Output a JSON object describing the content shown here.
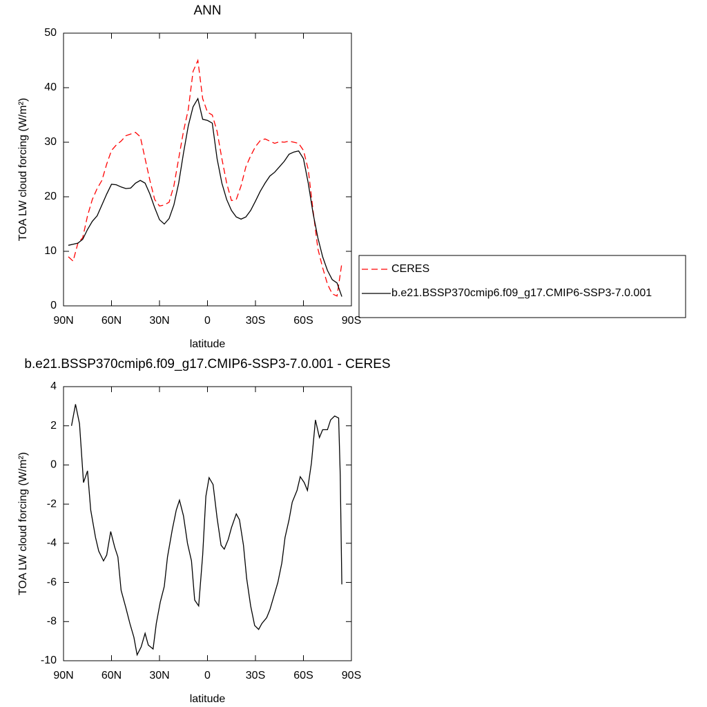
{
  "chart_data": [
    {
      "type": "line",
      "title": "ANN",
      "x_label": "latitude",
      "y_label": "TOA LW cloud forcing (W/m²)",
      "x": [
        87,
        84,
        81,
        78,
        75,
        72,
        69,
        66,
        63,
        60,
        57,
        54,
        51,
        48,
        45,
        42,
        39,
        36,
        33,
        30,
        27,
        24,
        21,
        18,
        15,
        12,
        9,
        6,
        3,
        0,
        -3,
        -6,
        -9,
        -12,
        -15,
        -18,
        -21,
        -24,
        -27,
        -30,
        -33,
        -36,
        -39,
        -42,
        -45,
        -48,
        -51,
        -54,
        -57,
        -60,
        -63,
        -66,
        -69,
        -72,
        -75,
        -78,
        -81,
        -84
      ],
      "series": [
        {
          "name": "CERES",
          "color": "#ff0000",
          "line_style": "dashed",
          "values": [
            9,
            8.2,
            11.5,
            12.5,
            16.5,
            19.5,
            21.5,
            23,
            26,
            28.5,
            29.5,
            30.2,
            31.2,
            31.5,
            31.8,
            31,
            27,
            23,
            19.5,
            18.3,
            18.5,
            19,
            22,
            27,
            32,
            36,
            43,
            45,
            38,
            35.5,
            35,
            32,
            27,
            22.5,
            19.3,
            19.5,
            22,
            25.5,
            27.5,
            29.2,
            30.3,
            30.6,
            30.2,
            29.8,
            30.1,
            30,
            30.2,
            30,
            29.8,
            28.5,
            25,
            17.5,
            10.5,
            7,
            4,
            2.2,
            1.8,
            7.8
          ]
        },
        {
          "name": "b.e21.BSSP370cmip6.f09_g17.CMIP6-SSP3-7.0.001",
          "color": "#000000",
          "line_style": "solid",
          "values": [
            11.1,
            11.3,
            11.5,
            12.2,
            14,
            15.5,
            16.5,
            18.5,
            20.5,
            22.3,
            22.2,
            21.8,
            21.5,
            21.6,
            22.5,
            23,
            22.5,
            20.5,
            18,
            15.8,
            15,
            16,
            18.5,
            22.5,
            28,
            33,
            36.5,
            38,
            34.2,
            34,
            33.5,
            27,
            22.5,
            19.5,
            17.5,
            16.3,
            15.9,
            16.3,
            17.5,
            19.2,
            21,
            22.5,
            23.8,
            24.5,
            25.5,
            26.5,
            27.8,
            28.2,
            28.4,
            27,
            22.5,
            17,
            12.5,
            9,
            6.5,
            4.8,
            4.2,
            1.7
          ]
        }
      ],
      "xlim": [
        90,
        -90
      ],
      "xticks": [
        {
          "value": 90,
          "label": "90N"
        },
        {
          "value": 60,
          "label": "60N"
        },
        {
          "value": 30,
          "label": "30N"
        },
        0,
        {
          "value": -30,
          "label": "30S"
        },
        {
          "value": -60,
          "label": "60S"
        },
        {
          "value": -90,
          "label": "90S"
        }
      ],
      "ylim": [
        0,
        50
      ],
      "yticks": [
        0,
        10,
        20,
        30,
        40,
        50
      ],
      "legend": "right"
    },
    {
      "type": "line",
      "title": "b.e21.BSSP370cmip6.f09_g17.CMIP6-SSP3-7.0.001 - CERES",
      "x_label": "latitude",
      "y_label": "TOA LW cloud forcing (W/m²)",
      "x": [
        85,
        82.5,
        80,
        77.5,
        75,
        73,
        70,
        68,
        65,
        63,
        60.5,
        58,
        56,
        54,
        51,
        48.5,
        46,
        44,
        41.5,
        39,
        37,
        34,
        32,
        29.5,
        27,
        25,
        22,
        19.5,
        17.5,
        15,
        12.5,
        10,
        8,
        5.5,
        3,
        1,
        -1,
        -3.5,
        -6,
        -8.5,
        -10.5,
        -13,
        -15,
        -18,
        -20,
        -22.5,
        -24.5,
        -27,
        -29.5,
        -32,
        -34,
        -37,
        -39,
        -41.5,
        -44,
        -46.5,
        -48.5,
        -51,
        -53,
        -56,
        -58,
        -60.5,
        -62.5,
        -65,
        -67.5,
        -70,
        -72,
        -75,
        -77,
        -79.5,
        -82,
        -83,
        -84
      ],
      "series": [
        {
          "color": "#000000",
          "line_style": "solid",
          "values": [
            2.0,
            3.1,
            2.1,
            -0.9,
            -0.3,
            -2.3,
            -3.7,
            -4.4,
            -4.9,
            -4.6,
            -3.4,
            -4.2,
            -4.7,
            -6.4,
            -7.3,
            -8.1,
            -8.8,
            -9.7,
            -9.3,
            -8.6,
            -9.2,
            -9.4,
            -8.1,
            -7.0,
            -6.2,
            -4.7,
            -3.3,
            -2.3,
            -1.8,
            -2.6,
            -4.0,
            -4.9,
            -6.9,
            -7.2,
            -4.6,
            -1.6,
            -0.65,
            -1.0,
            -2.7,
            -4.1,
            -4.3,
            -3.8,
            -3.2,
            -2.5,
            -2.8,
            -4.1,
            -5.8,
            -7.2,
            -8.2,
            -8.4,
            -8.1,
            -7.8,
            -7.4,
            -6.7,
            -6.0,
            -5.0,
            -3.7,
            -2.8,
            -1.9,
            -1.3,
            -0.6,
            -0.9,
            -1.3,
            0.1,
            2.3,
            1.4,
            1.8,
            1.8,
            2.3,
            2.5,
            2.4,
            -0.5,
            -6.1
          ]
        }
      ],
      "xlim": [
        90,
        -90
      ],
      "xticks": [
        {
          "value": 90,
          "label": "90N"
        },
        {
          "value": 60,
          "label": "60N"
        },
        {
          "value": 30,
          "label": "30N"
        },
        0,
        {
          "value": -30,
          "label": "30S"
        },
        {
          "value": -60,
          "label": "60S"
        },
        {
          "value": -90,
          "label": "90S"
        }
      ],
      "ylim": [
        -10,
        4
      ],
      "yticks": [
        -10,
        -8,
        -6,
        -4,
        -2,
        0,
        2,
        4
      ]
    }
  ]
}
